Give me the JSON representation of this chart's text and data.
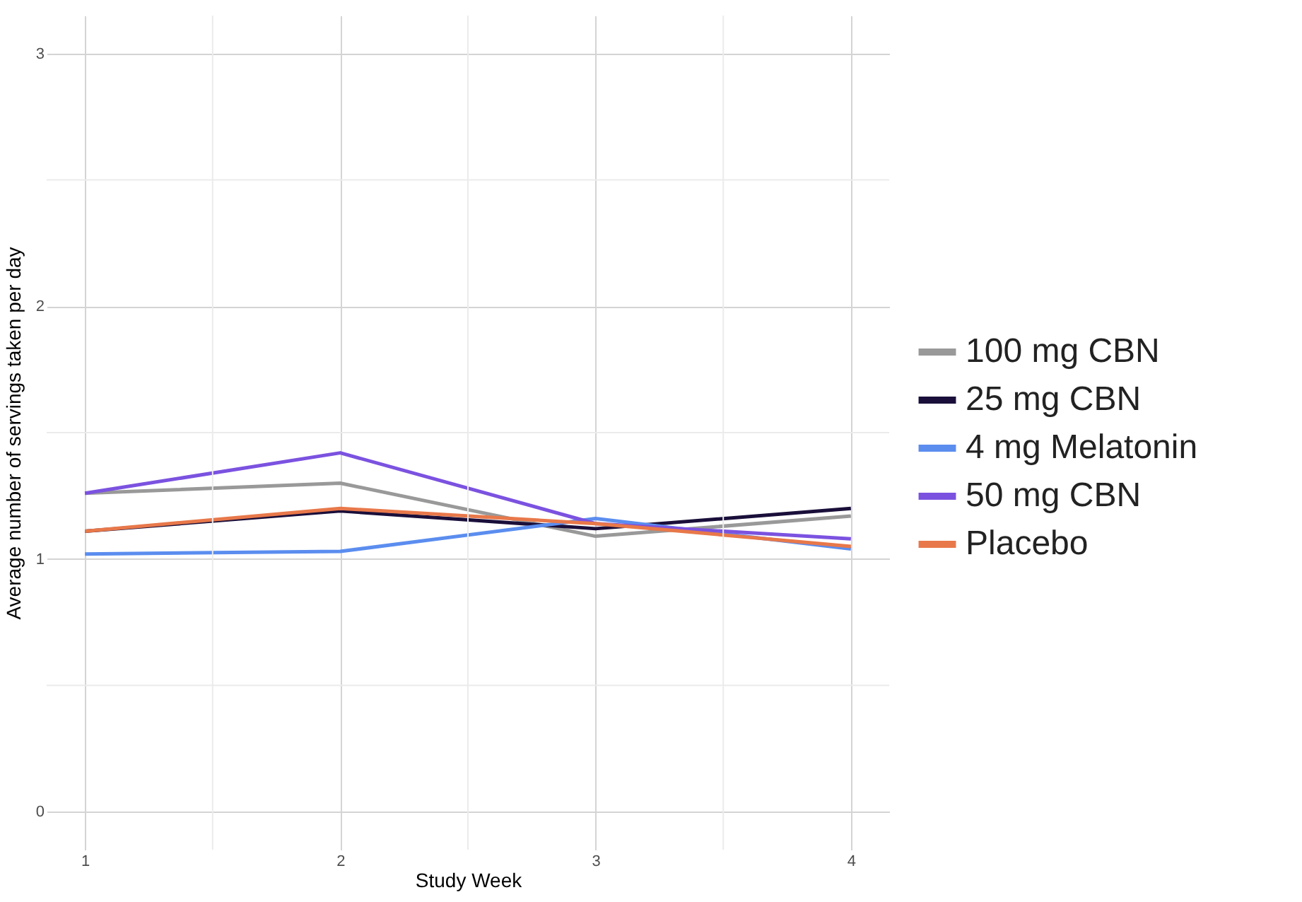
{
  "chart_data": {
    "type": "line",
    "xlabel": "Study Week",
    "ylabel": "Average number of servings taken per day",
    "x": [
      1,
      2,
      3,
      4
    ],
    "series": [
      {
        "name": "100 mg CBN",
        "color": "#999999",
        "values": [
          1.26,
          1.3,
          1.09,
          1.17
        ]
      },
      {
        "name": "25 mg CBN",
        "color": "#1a0f3a",
        "values": [
          1.11,
          1.19,
          1.12,
          1.2
        ]
      },
      {
        "name": "4 mg Melatonin",
        "color": "#5b8def",
        "values": [
          1.02,
          1.03,
          1.16,
          1.04
        ]
      },
      {
        "name": "50 mg CBN",
        "color": "#7b52e0",
        "values": [
          1.26,
          1.42,
          1.14,
          1.08
        ]
      },
      {
        "name": "Placebo",
        "color": "#e8784a",
        "values": [
          1.11,
          1.2,
          1.14,
          1.05
        ]
      }
    ],
    "xlim": [
      0.85,
      4.15
    ],
    "ylim": [
      -0.15,
      3.15
    ],
    "xticks": [
      1,
      2,
      3,
      4
    ],
    "yticks": [
      0,
      1,
      2,
      3
    ],
    "grid": true,
    "legend": "right",
    "marker": "none",
    "line_style": "solid"
  }
}
